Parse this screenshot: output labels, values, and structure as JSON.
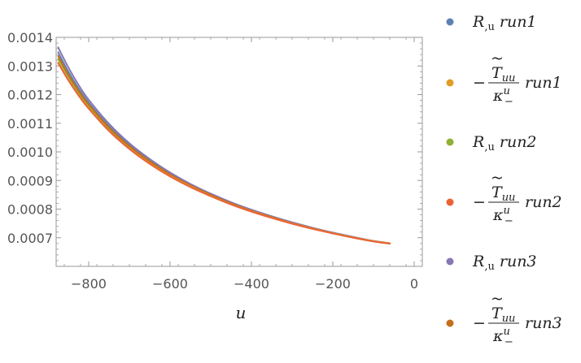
{
  "chart_data": {
    "type": "line",
    "title": "",
    "xlabel": "u",
    "ylabel": "",
    "xlim": [
      -880,
      20
    ],
    "ylim": [
      0.0006,
      0.0014
    ],
    "x_ticks": [
      -800,
      -600,
      -400,
      -200,
      0
    ],
    "y_ticks": [
      0.0007,
      0.0008,
      0.0009,
      0.001,
      0.0011,
      0.0012,
      0.0013,
      0.0014
    ],
    "x_tick_labels": [
      "−800",
      "−600",
      "−400",
      "−200",
      "0"
    ],
    "y_tick_labels": [
      "0.0007",
      "0.0008",
      "0.0009",
      "0.0010",
      "0.0011",
      "0.0012",
      "0.0013",
      "0.0014"
    ],
    "grid": false,
    "legend_position": "right",
    "x": [
      -875,
      -850,
      -825,
      -800,
      -750,
      -700,
      -650,
      -600,
      -550,
      -500,
      -450,
      -400,
      -350,
      -300,
      -250,
      -200,
      -150,
      -100,
      -60
    ],
    "series": [
      {
        "name": "R,u run1",
        "color": "#5E81B5",
        "values": [
          0.001348,
          0.00128,
          0.001222,
          0.001172,
          0.00109,
          0.001024,
          0.00097,
          0.000924,
          0.000885,
          0.000852,
          0.000822,
          0.000796,
          0.000773,
          0.000752,
          0.000734,
          0.000717,
          0.000702,
          0.000688,
          0.00068
        ]
      },
      {
        "name": "-T~uu/kappa run1",
        "color": "#E19C24",
        "values": [
          0.001312,
          0.001252,
          0.001199,
          0.001153,
          0.001075,
          0.001012,
          0.00096,
          0.000916,
          0.000879,
          0.000846,
          0.000817,
          0.000792,
          0.00077,
          0.00075,
          0.000732,
          0.000716,
          0.000701,
          0.000688,
          0.00068
        ]
      },
      {
        "name": "R,u run2",
        "color": "#8FB032",
        "values": [
          0.001325,
          0.001263,
          0.001208,
          0.001161,
          0.001081,
          0.001017,
          0.000964,
          0.000919,
          0.000881,
          0.000848,
          0.000819,
          0.000793,
          0.000771,
          0.000751,
          0.000733,
          0.000716,
          0.000701,
          0.000688,
          0.00068
        ]
      },
      {
        "name": "-T~uu/kappa run2",
        "color": "#EB6235",
        "values": [
          0.00131,
          0.00125,
          0.001197,
          0.001151,
          0.001073,
          0.00101,
          0.000958,
          0.000914,
          0.000877,
          0.000845,
          0.000816,
          0.000791,
          0.000769,
          0.000749,
          0.000731,
          0.000715,
          0.0007,
          0.000687,
          0.000679
        ]
      },
      {
        "name": "R,u run3",
        "color": "#8778B3",
        "values": [
          0.001365,
          0.001295,
          0.001234,
          0.001182,
          0.001098,
          0.00103,
          0.000975,
          0.000928,
          0.000888,
          0.000854,
          0.000824,
          0.000798,
          0.000775,
          0.000754,
          0.000735,
          0.000718,
          0.000703,
          0.000689,
          0.000681
        ]
      },
      {
        "name": "-T~uu/kappa run3",
        "color": "#C56E1A",
        "values": [
          0.001335,
          0.00127,
          0.001214,
          0.001166,
          0.001085,
          0.00102,
          0.000967,
          0.000921,
          0.000883,
          0.00085,
          0.00082,
          0.000794,
          0.000772,
          0.000751,
          0.000733,
          0.000716,
          0.000701,
          0.000688,
          0.00068
        ]
      }
    ]
  },
  "legend": {
    "items": [
      {
        "kind": "R",
        "color": "#5E81B5",
        "R": "R",
        "sub": ",u",
        "run": "run1"
      },
      {
        "kind": "T",
        "color": "#E19C24",
        "minus": "−",
        "T": "T",
        "tilde": "~",
        "sub": "uu",
        "kappa": "κ",
        "sup": "u",
        "sub2": "−",
        "run": "run1"
      },
      {
        "kind": "R",
        "color": "#8FB032",
        "R": "R",
        "sub": ",u",
        "run": "run2"
      },
      {
        "kind": "T",
        "color": "#EB6235",
        "minus": "−",
        "T": "T",
        "tilde": "~",
        "sub": "uu",
        "kappa": "κ",
        "sup": "u",
        "sub2": "−",
        "run": "run2"
      },
      {
        "kind": "R",
        "color": "#8778B3",
        "R": "R",
        "sub": ",u",
        "run": "run3"
      },
      {
        "kind": "T",
        "color": "#C56E1A",
        "minus": "−",
        "T": "T",
        "tilde": "~",
        "sub": "uu",
        "kappa": "κ",
        "sup": "u",
        "sub2": "−",
        "run": "run3"
      }
    ]
  }
}
